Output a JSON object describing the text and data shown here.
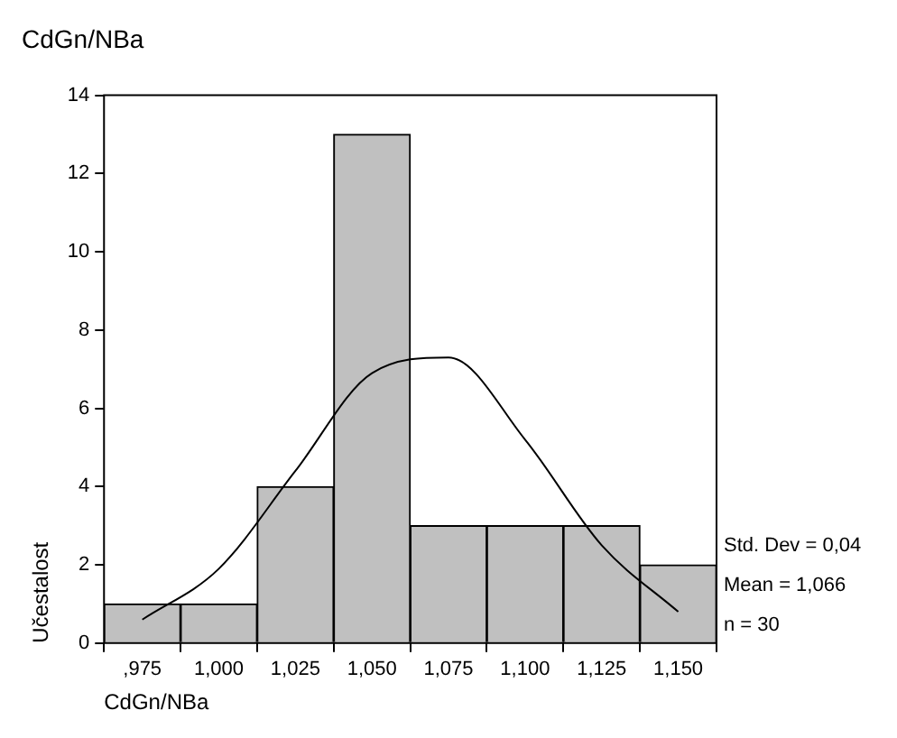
{
  "chart_data": {
    "type": "bar",
    "title": "CdGn/NBa",
    "xlabel": "CdGn/NBa",
    "ylabel": "Učestalost",
    "categories": [
      ",975",
      "1,000",
      "1,025",
      "1,050",
      "1,075",
      "1,100",
      "1,125",
      "1,150"
    ],
    "values": [
      1,
      1,
      4,
      13,
      3,
      3,
      3,
      2
    ],
    "color": "#c0c0c0",
    "series": [
      {
        "type": "line",
        "color": "#000000",
        "values": [
          0.6,
          1.9,
          4.4,
          6.9,
          7.3,
          5.2,
          2.5,
          0.8
        ]
      }
    ],
    "ylim": [
      0,
      14
    ],
    "yticks": [
      0,
      2,
      4,
      6,
      8,
      10,
      12,
      14
    ],
    "annotations": [
      "Std. Dev = 0,04",
      "Mean = 1,066",
      "n = 30"
    ]
  }
}
